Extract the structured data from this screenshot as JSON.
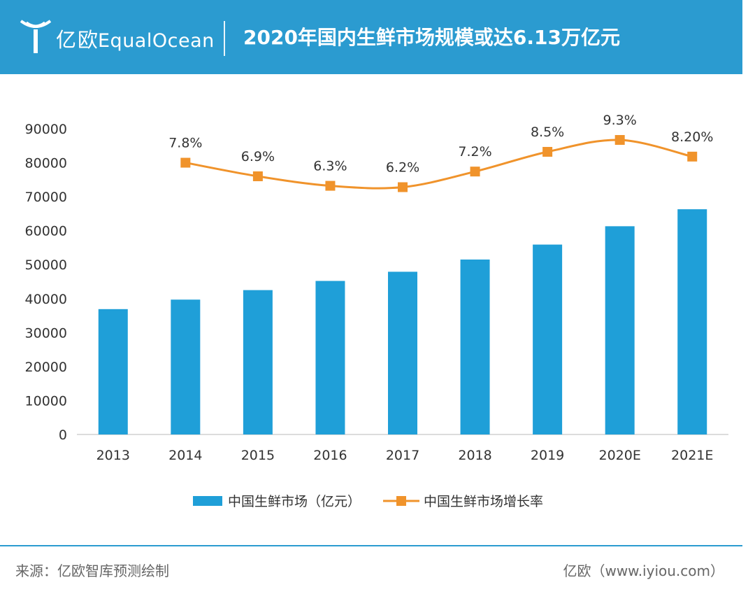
{
  "header": {
    "logo_cn": "亿欧",
    "logo_en": "EqualOcean",
    "title": "2020年国内生鲜市场规模或达6.13万亿元",
    "bg_color": "#2b9bd0"
  },
  "footer": {
    "source": "来源：亿欧智库预测绘制",
    "site": "亿欧（www.iyiou.com）"
  },
  "chart_data": {
    "type": "bar",
    "categories": [
      "2013",
      "2014",
      "2015",
      "2016",
      "2017",
      "2018",
      "2019",
      "2020E",
      "2021E"
    ],
    "y_ticks": [
      "0",
      "10000",
      "20000",
      "30000",
      "40000",
      "50000",
      "60000",
      "70000",
      "80000",
      "90000"
    ],
    "ylim": [
      0,
      90000
    ],
    "grid": false,
    "legend_position": "bottom",
    "series": [
      {
        "name": "中国生鲜市场（亿元）",
        "type": "bar",
        "color": "#1f9fd8",
        "values": [
          36900,
          39700,
          42500,
          45200,
          47900,
          51500,
          55900,
          61300,
          66300
        ]
      },
      {
        "name": "中国生鲜市场增长率",
        "type": "line",
        "color": "#f0932b",
        "values": [
          null,
          7.8,
          6.9,
          6.3,
          6.2,
          7.2,
          8.5,
          9.3,
          8.2
        ],
        "labels": [
          "",
          "7.8%",
          "6.9%",
          "6.3%",
          "6.2%",
          "7.2%",
          "8.5%",
          "9.3%",
          "8.20%"
        ],
        "plotted_y": [
          null,
          80000,
          76000,
          73200,
          72800,
          77400,
          83200,
          86700,
          81800
        ]
      }
    ]
  }
}
